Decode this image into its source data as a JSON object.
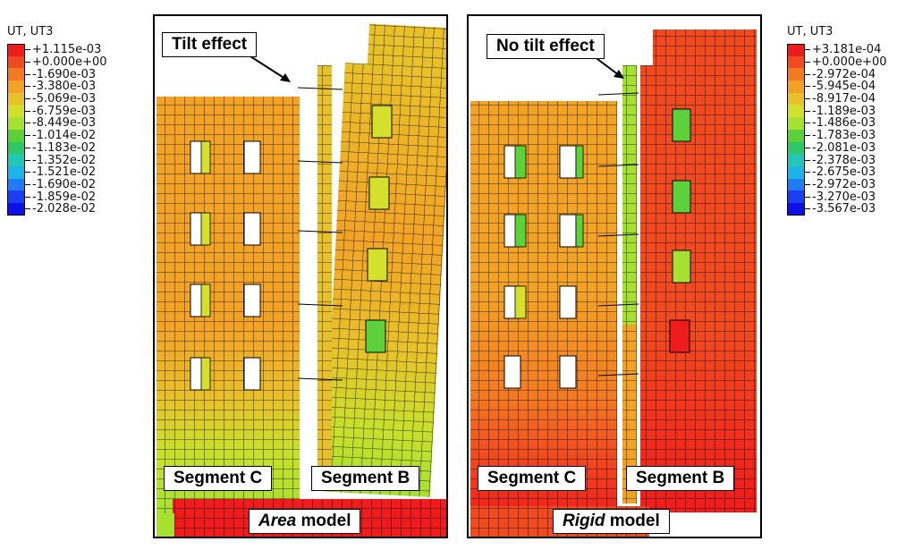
{
  "left_legend": {
    "title": "UT, UT3",
    "entries": [
      {
        "value": "+1.115e-03",
        "color": "#ee1c1c"
      },
      {
        "value": "+0.000e+00",
        "color": "#f04a20"
      },
      {
        "value": "-1.690e-03",
        "color": "#f27a22"
      },
      {
        "value": "-3.380e-03",
        "color": "#f2a326"
      },
      {
        "value": "-5.069e-03",
        "color": "#e8c02a"
      },
      {
        "value": "-6.759e-03",
        "color": "#d4e02c"
      },
      {
        "value": "-8.449e-03",
        "color": "#a6e030"
      },
      {
        "value": "-1.014e-02",
        "color": "#5cd13a"
      },
      {
        "value": "-1.183e-02",
        "color": "#2ec86a"
      },
      {
        "value": "-1.352e-02",
        "color": "#22c8b4"
      },
      {
        "value": "-1.521e-02",
        "color": "#1ab4e6"
      },
      {
        "value": "-1.690e-02",
        "color": "#1f7cf2"
      },
      {
        "value": "-1.859e-02",
        "color": "#1b3ef0"
      },
      {
        "value": "-2.028e-02",
        "color": "#0f10e6"
      }
    ]
  },
  "right_legend": {
    "title": "UT, UT3",
    "entries": [
      {
        "value": "+3.181e-04",
        "color": "#ee1c1c"
      },
      {
        "value": "+0.000e+00",
        "color": "#f04a20"
      },
      {
        "value": "-2.972e-04",
        "color": "#f27a22"
      },
      {
        "value": "-5.945e-04",
        "color": "#f2a326"
      },
      {
        "value": "-8.917e-04",
        "color": "#e8c02a"
      },
      {
        "value": "-1.189e-03",
        "color": "#d4e02c"
      },
      {
        "value": "-1.486e-03",
        "color": "#a6e030"
      },
      {
        "value": "-1.783e-03",
        "color": "#5cd13a"
      },
      {
        "value": "-2.081e-03",
        "color": "#2ec86a"
      },
      {
        "value": "-2.378e-03",
        "color": "#22c8b4"
      },
      {
        "value": "-2.675e-03",
        "color": "#1ab4e6"
      },
      {
        "value": "-2.972e-03",
        "color": "#1f7cf2"
      },
      {
        "value": "-3.270e-03",
        "color": "#1b3ef0"
      },
      {
        "value": "-3.567e-03",
        "color": "#0f10e6"
      }
    ]
  },
  "left_panel": {
    "annotation": "Tilt effect",
    "segment_c": "Segment C",
    "segment_b": "Segment B",
    "model_em": "Area",
    "model_rest": " model"
  },
  "right_panel": {
    "annotation": "No tilt effect",
    "segment_c": "Segment C",
    "segment_b": "Segment B",
    "model_em": "Rigid",
    "model_rest": " model"
  }
}
